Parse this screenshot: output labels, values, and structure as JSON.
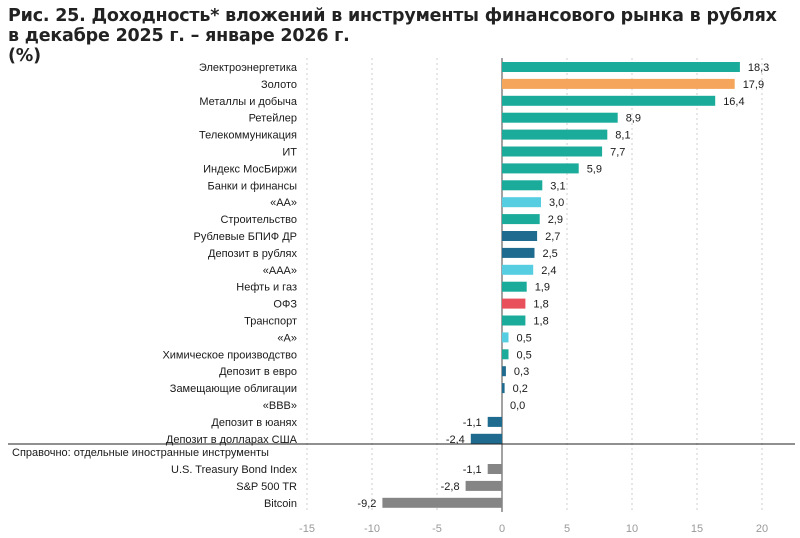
{
  "header": {
    "title_line1": "Рис. 25. Доходность* вложений в инструменты финансового рынка в рублях",
    "title_line2": "в декабре 2025 г. – январе 2026 г.",
    "title_line3": "(%)"
  },
  "reference_label": "Справочно: отдельные иностранные инструменты",
  "colors": {
    "teal": "#1bab9b",
    "orange": "#f5a55c",
    "navy": "#1f6a8f",
    "light_blue": "#56cde0",
    "red": "#e8505b",
    "gray": "#858585"
  },
  "chart_data": {
    "type": "bar",
    "orientation": "horizontal",
    "xlim": [
      -15,
      20
    ],
    "xticks": [
      "-15",
      "-10",
      "-5",
      "0",
      "5",
      "10",
      "15",
      "20"
    ],
    "xtick_values": [
      -15,
      -10,
      -5,
      0,
      5,
      10,
      15,
      20
    ],
    "grid": "vertical dashed",
    "bars": [
      {
        "label": "Электроэнергетика",
        "value": 18.3,
        "value_label": "18,3",
        "color": "teal"
      },
      {
        "label": "Золото",
        "value": 17.9,
        "value_label": "17,9",
        "color": "orange"
      },
      {
        "label": "Металлы и добыча",
        "value": 16.4,
        "value_label": "16,4",
        "color": "teal"
      },
      {
        "label": "Ретейлер",
        "value": 8.9,
        "value_label": "8,9",
        "color": "teal"
      },
      {
        "label": "Телекоммуникация",
        "value": 8.1,
        "value_label": "8,1",
        "color": "teal"
      },
      {
        "label": "ИТ",
        "value": 7.7,
        "value_label": "7,7",
        "color": "teal"
      },
      {
        "label": "Индекс МосБиржи",
        "value": 5.9,
        "value_label": "5,9",
        "color": "teal"
      },
      {
        "label": "Банки и финансы",
        "value": 3.1,
        "value_label": "3,1",
        "color": "teal"
      },
      {
        "label": "«АА»",
        "value": 3.0,
        "value_label": "3,0",
        "color": "light_blue"
      },
      {
        "label": "Строительство",
        "value": 2.9,
        "value_label": "2,9",
        "color": "teal"
      },
      {
        "label": "Рублевые БПИФ ДР",
        "value": 2.7,
        "value_label": "2,7",
        "color": "navy"
      },
      {
        "label": "Депозит в рублях",
        "value": 2.5,
        "value_label": "2,5",
        "color": "navy"
      },
      {
        "label": "«ААА»",
        "value": 2.4,
        "value_label": "2,4",
        "color": "light_blue"
      },
      {
        "label": "Нефть и газ",
        "value": 1.9,
        "value_label": "1,9",
        "color": "teal"
      },
      {
        "label": "ОФЗ",
        "value": 1.8,
        "value_label": "1,8",
        "color": "red"
      },
      {
        "label": "Транспорт",
        "value": 1.8,
        "value_label": "1,8",
        "color": "teal"
      },
      {
        "label": "«А»",
        "value": 0.5,
        "value_label": "0,5",
        "color": "light_blue"
      },
      {
        "label": "Химическое производство",
        "value": 0.5,
        "value_label": "0,5",
        "color": "teal"
      },
      {
        "label": "Депозит в евро",
        "value": 0.3,
        "value_label": "0,3",
        "color": "navy"
      },
      {
        "label": "Замещающие облигации",
        "value": 0.2,
        "value_label": "0,2",
        "color": "navy"
      },
      {
        "label": "«ВВВ»",
        "value": 0.0,
        "value_label": "0,0",
        "color": "light_blue"
      },
      {
        "label": "Депозит в юанях",
        "value": -1.1,
        "value_label": "-1,1",
        "color": "navy"
      },
      {
        "label": "Депозит в долларах США",
        "value": -2.4,
        "value_label": "-2,4",
        "color": "navy"
      }
    ],
    "reference_bars": [
      {
        "label": "U.S. Treasury Bond Index",
        "value": -1.1,
        "value_label": "-1,1",
        "color": "gray"
      },
      {
        "label": "S&P 500 TR",
        "value": -2.8,
        "value_label": "-2,8",
        "color": "gray"
      },
      {
        "label": "Bitcoin",
        "value": -9.2,
        "value_label": "-9,2",
        "color": "gray"
      }
    ]
  }
}
